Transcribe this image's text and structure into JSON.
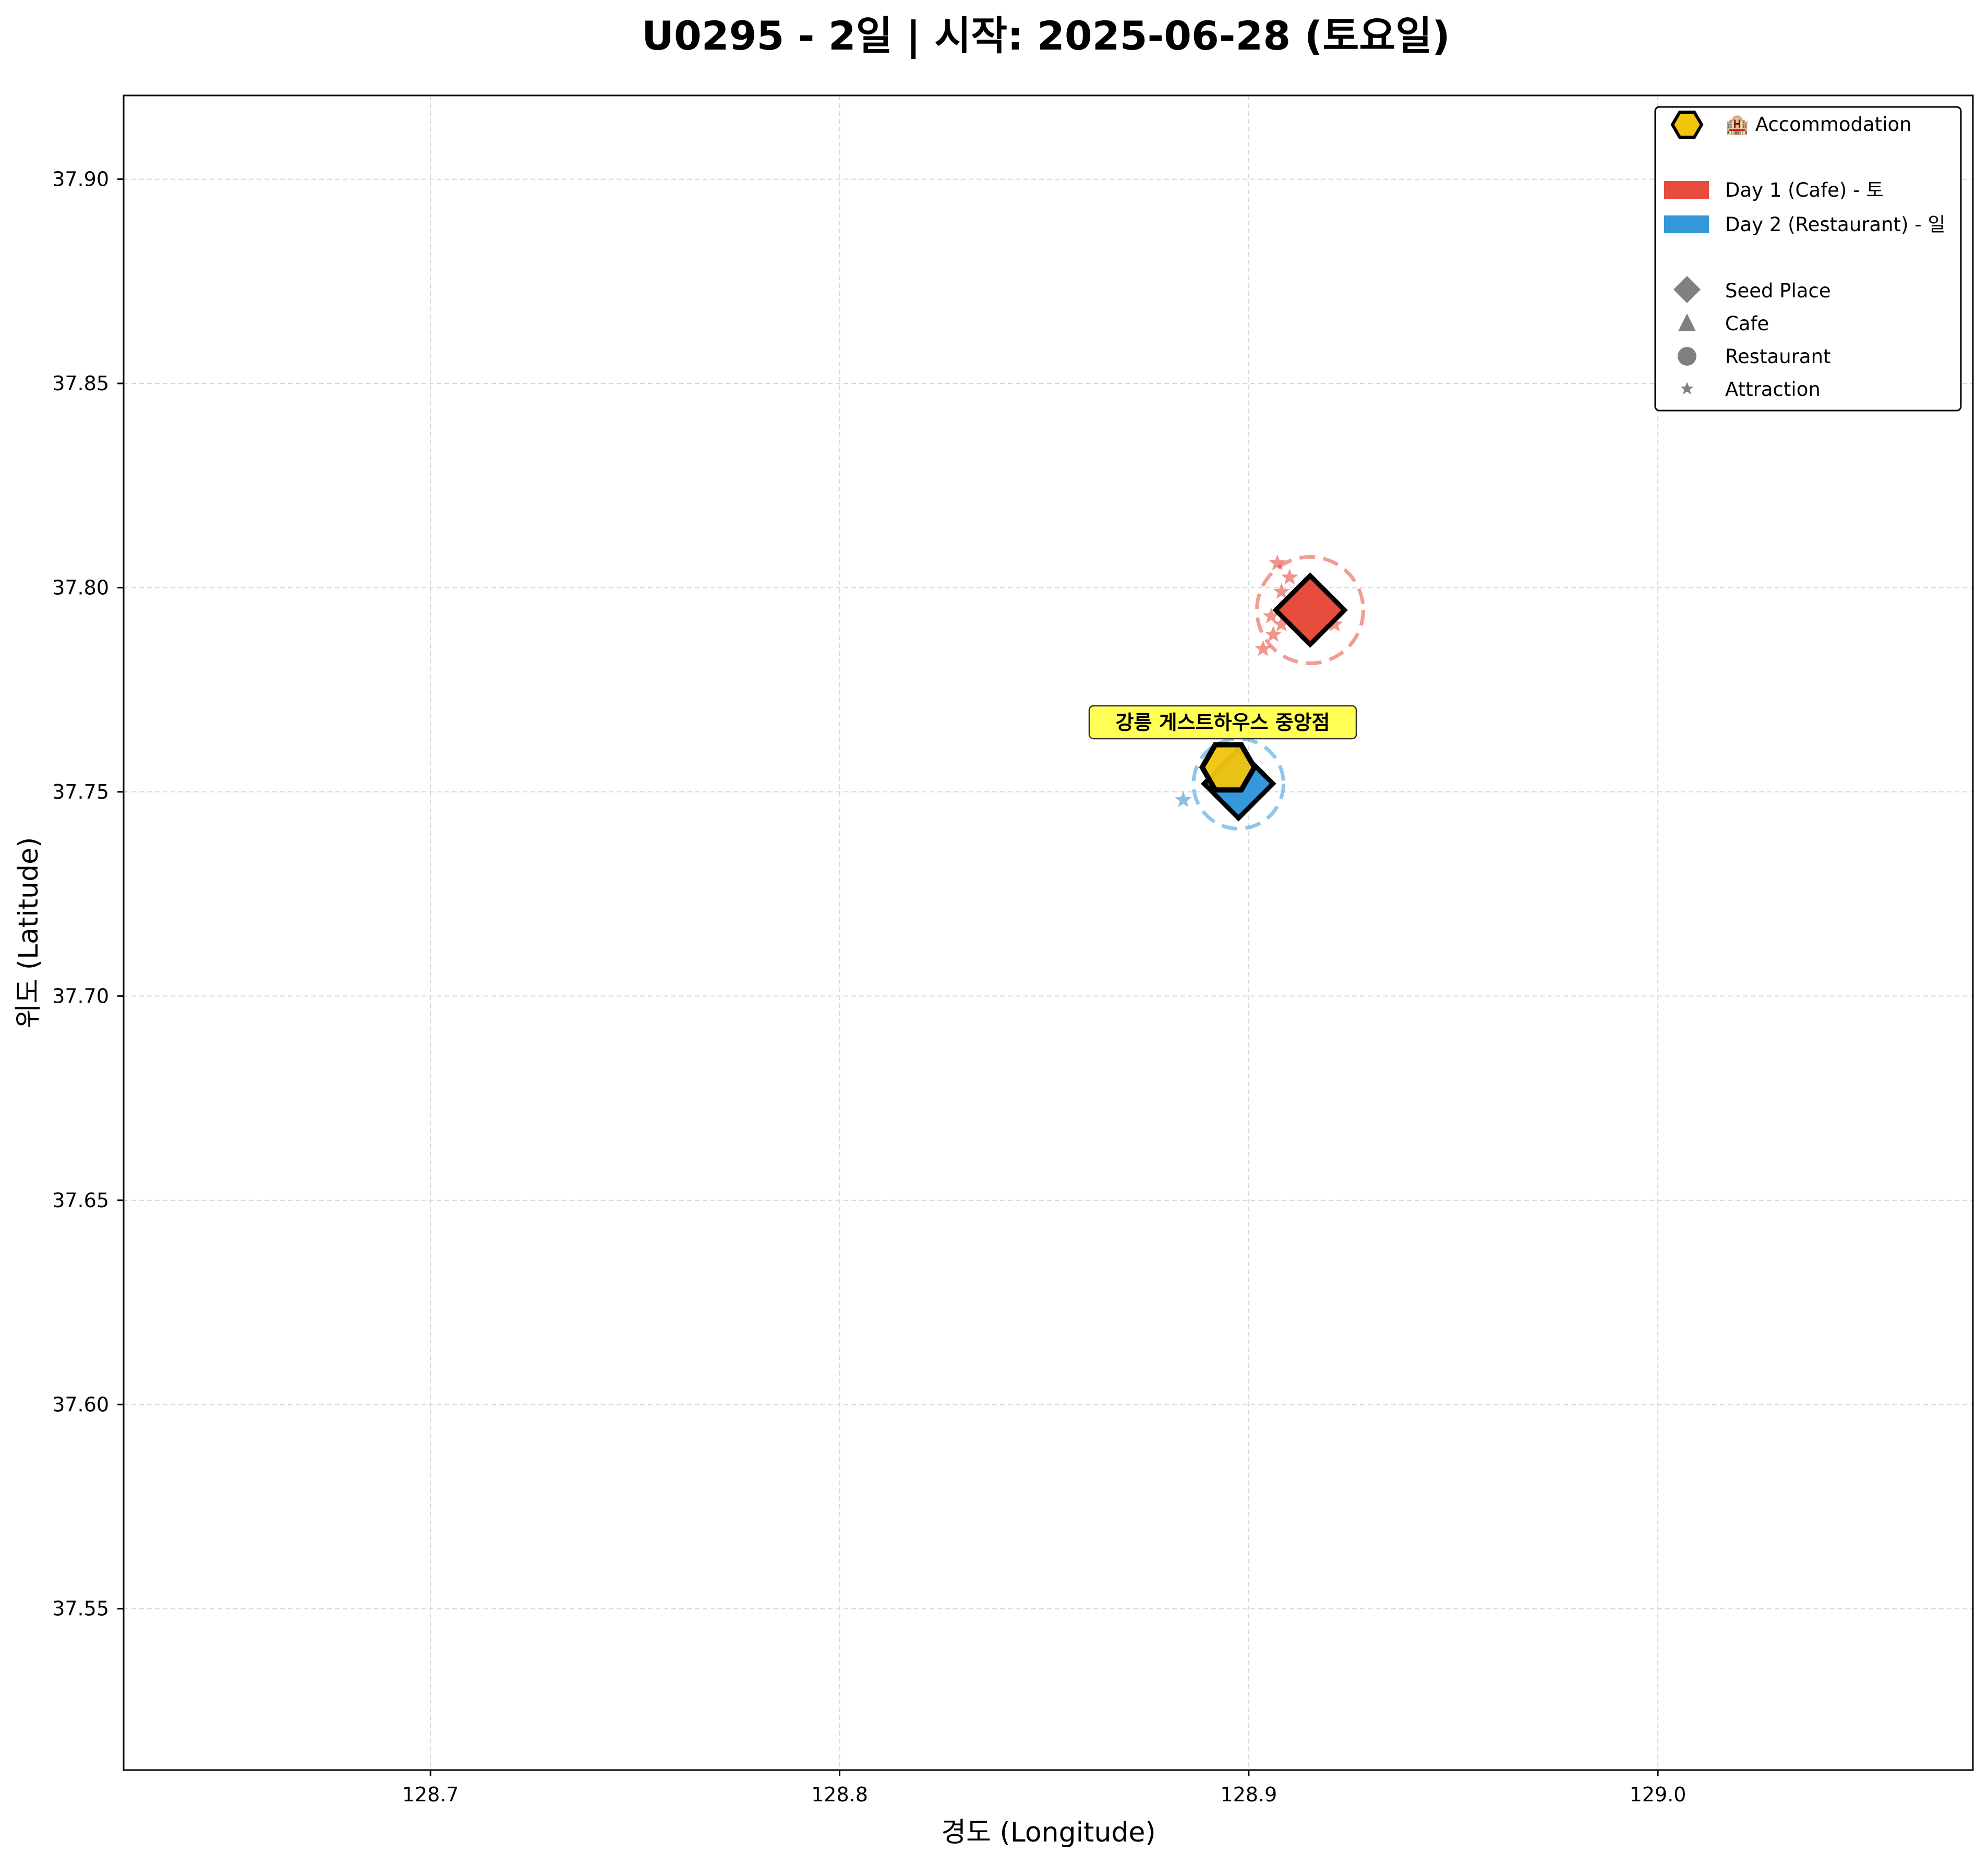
{
  "chart_data": {
    "type": "scatter",
    "title": "U0295 - 2일 | 시작: 2025-06-28 (토요일)",
    "xlabel": "경도 (Longitude)",
    "ylabel": "위도 (Latitude)",
    "xlim": [
      128.625,
      129.077
    ],
    "ylim": [
      37.5105,
      37.9205
    ],
    "xticks": [
      "128.7",
      "128.8",
      "128.9",
      "129.0"
    ],
    "yticks": [
      "37.55",
      "37.60",
      "37.65",
      "37.70",
      "37.75",
      "37.80",
      "37.85",
      "37.90"
    ],
    "grid": true,
    "legend_position": "top-right",
    "colors": {
      "day1": "#e74c3c",
      "day2": "#3498db",
      "accommodation": "#f1c40f",
      "label_box": "#ffff44",
      "legend_gray": "#808080"
    },
    "legend": {
      "accommodation": "🏨 Accommodation",
      "day1": "Day 1 (Cafe) - 토",
      "day2": "Day 2 (Restaurant) - 일",
      "seed": "Seed Place",
      "cafe": "Cafe",
      "restaurant": "Restaurant",
      "attraction": "Attraction"
    },
    "series": [
      {
        "name": "Day 1 (Cafe) - 토",
        "color": "#e74c3c",
        "seed": {
          "x": 128.915,
          "y": 37.7945
        },
        "radius_deg": 0.013,
        "attractions": [
          {
            "x": 128.907,
            "y": 37.806
          },
          {
            "x": 128.91,
            "y": 37.8025
          },
          {
            "x": 128.908,
            "y": 37.799
          },
          {
            "x": 128.9055,
            "y": 37.793
          },
          {
            "x": 128.908,
            "y": 37.791
          },
          {
            "x": 128.906,
            "y": 37.7885
          },
          {
            "x": 128.9035,
            "y": 37.785
          },
          {
            "x": 128.921,
            "y": 37.791
          }
        ]
      },
      {
        "name": "Day 2 (Restaurant) - 일",
        "color": "#3498db",
        "seed": {
          "x": 128.8975,
          "y": 37.752
        },
        "radius_deg": 0.011,
        "attractions": [
          {
            "x": 128.884,
            "y": 37.748
          },
          {
            "x": 128.893,
            "y": 37.754
          }
        ]
      }
    ],
    "accommodation": {
      "x": 128.895,
      "y": 37.756,
      "label": "강릉 게스트하우스 중앙점"
    }
  }
}
